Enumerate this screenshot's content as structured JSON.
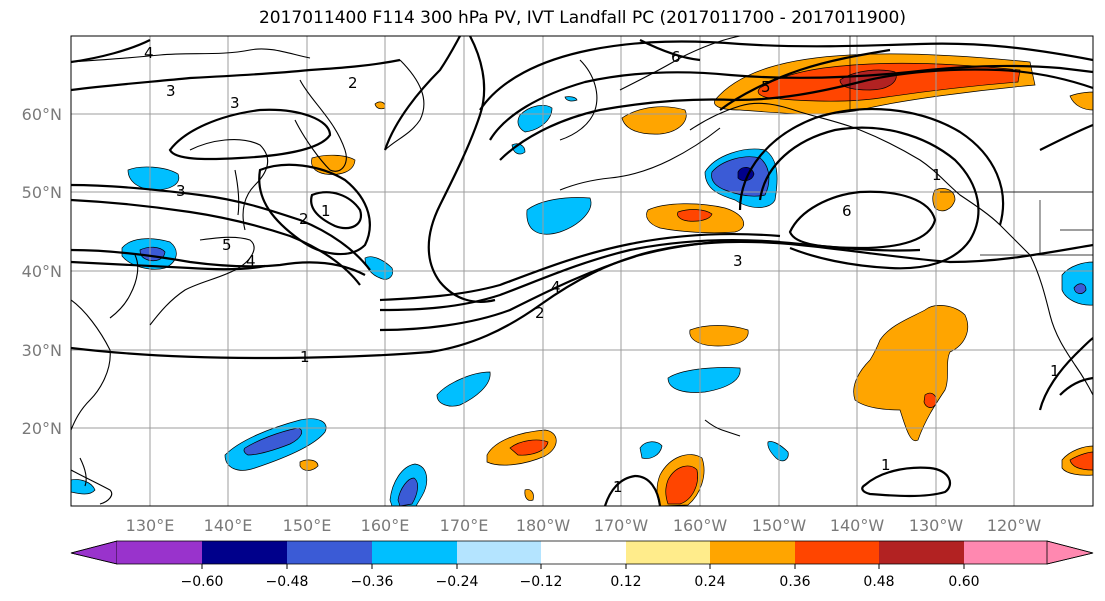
{
  "title": "2017011400 F114 300 hPa PV, IVT Landfall PC (2017011700 - 2017011900)",
  "map": {
    "lat_labels": [
      "60°N",
      "50°N",
      "40°N",
      "30°N",
      "20°N"
    ],
    "lon_labels": [
      "130°E",
      "140°E",
      "150°E",
      "160°E",
      "170°E",
      "180°W",
      "170°W",
      "160°W",
      "150°W",
      "140°W",
      "130°W",
      "120°W"
    ],
    "contour_labels": [
      "4",
      "3",
      "3",
      "2",
      "6",
      "5",
      "3",
      "2",
      "1",
      "5",
      "4",
      "6",
      "4",
      "3",
      "2",
      "1",
      "1",
      "1",
      "1",
      "1"
    ]
  },
  "colorbar": {
    "tick_labels": [
      "−0.60",
      "−0.48",
      "−0.36",
      "−0.24",
      "−0.12",
      "0.12",
      "0.24",
      "0.36",
      "0.48",
      "0.60"
    ],
    "colors": [
      "#9933cc",
      "#00008b",
      "#3b5bd6",
      "#00bfff",
      "#b4e4ff",
      "#ffffff",
      "#ffec8b",
      "#ffa500",
      "#ff4500",
      "#b22222",
      "#ff88b0"
    ]
  }
}
